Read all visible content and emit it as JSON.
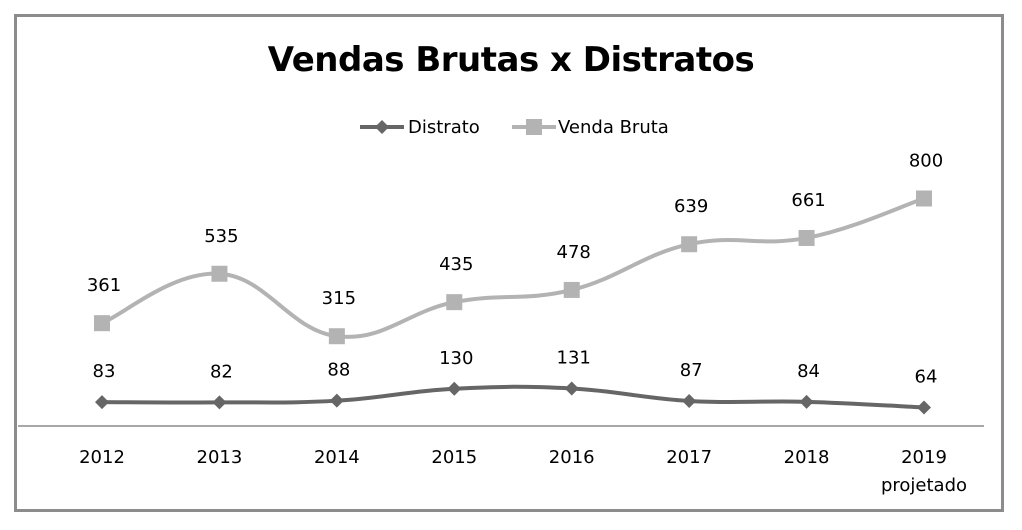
{
  "chart_data": {
    "type": "line",
    "title": "Vendas Brutas x Distratos",
    "categories": [
      "2012",
      "2013",
      "2014",
      "2015",
      "2016",
      "2017",
      "2018",
      "2019"
    ],
    "category_sublabels": [
      "",
      "",
      "",
      "",
      "",
      "",
      "",
      "projetado"
    ],
    "series": [
      {
        "name": "Distrato",
        "values": [
          83,
          82,
          88,
          130,
          131,
          87,
          84,
          64
        ],
        "color": "#666666",
        "marker": "diamond"
      },
      {
        "name": "Venda Bruta",
        "values": [
          361,
          535,
          315,
          435,
          478,
          639,
          661,
          800
        ],
        "color": "#b3b3b3",
        "marker": "square"
      }
    ],
    "smooth": true,
    "data_labels": true,
    "legend_position": "top",
    "grid": false
  }
}
